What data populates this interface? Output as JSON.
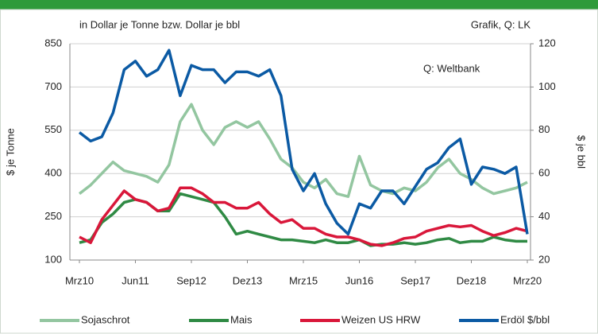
{
  "chart_data": {
    "type": "line",
    "title": "in Dollar je Tonne bzw. Dollar je bbl",
    "source": "Grafik, Q: LK",
    "annotation": "Q: Weltbank",
    "ylabel": "$ je Tonne",
    "y2label": "$ je bbl",
    "categories": [
      "Mrz10",
      null,
      null,
      null,
      null,
      "Jun11",
      null,
      null,
      null,
      null,
      "Sep12",
      null,
      null,
      null,
      null,
      "Dez13",
      null,
      null,
      null,
      null,
      "Mrz15",
      null,
      null,
      null,
      null,
      "Jun16",
      null,
      null,
      null,
      null,
      "Sep17",
      null,
      null,
      null,
      null,
      "Dez18",
      null,
      null,
      null,
      null,
      "Mrz20"
    ],
    "ylim": [
      100,
      850
    ],
    "yticks": [
      100,
      250,
      400,
      550,
      700,
      850
    ],
    "y2lim": [
      20,
      120
    ],
    "y2ticks": [
      20,
      40,
      60,
      80,
      100,
      120
    ],
    "grid": true,
    "series": [
      {
        "name": "Sojaschrot",
        "color": "#93c6a0",
        "values": [
          330,
          360,
          400,
          440,
          410,
          400,
          390,
          370,
          430,
          580,
          640,
          550,
          500,
          560,
          580,
          560,
          580,
          520,
          450,
          420,
          370,
          350,
          380,
          330,
          320,
          460,
          360,
          340,
          330,
          350,
          340,
          370,
          420,
          450,
          400,
          380,
          350,
          330,
          340,
          350,
          370
        ]
      },
      {
        "name": "Mais",
        "color": "#2f8a44",
        "values": [
          160,
          170,
          230,
          260,
          300,
          310,
          300,
          270,
          270,
          330,
          320,
          310,
          300,
          250,
          190,
          200,
          190,
          180,
          170,
          170,
          165,
          160,
          170,
          160,
          160,
          170,
          150,
          155,
          155,
          160,
          155,
          160,
          170,
          175,
          160,
          165,
          165,
          180,
          170,
          165,
          165
        ]
      },
      {
        "name": "Weizen US HRW",
        "color": "#d9173a",
        "values": [
          180,
          160,
          240,
          290,
          340,
          310,
          300,
          270,
          280,
          350,
          350,
          330,
          300,
          300,
          280,
          280,
          300,
          260,
          230,
          240,
          210,
          210,
          190,
          180,
          180,
          170,
          155,
          150,
          160,
          175,
          180,
          200,
          210,
          220,
          215,
          220,
          200,
          185,
          195,
          210,
          200
        ]
      },
      {
        "name": "Erdöl $/bbl",
        "color": "#0b5aa4",
        "axis": "y2",
        "values": [
          79,
          75,
          77,
          88,
          108,
          112,
          105,
          108,
          117,
          96,
          110,
          108,
          108,
          102,
          107,
          107,
          105,
          108,
          96,
          62,
          52,
          60,
          46,
          37,
          32,
          46,
          44,
          52,
          52,
          46,
          54,
          62,
          65,
          72,
          76,
          55,
          63,
          62,
          60,
          63,
          32
        ]
      }
    ]
  }
}
